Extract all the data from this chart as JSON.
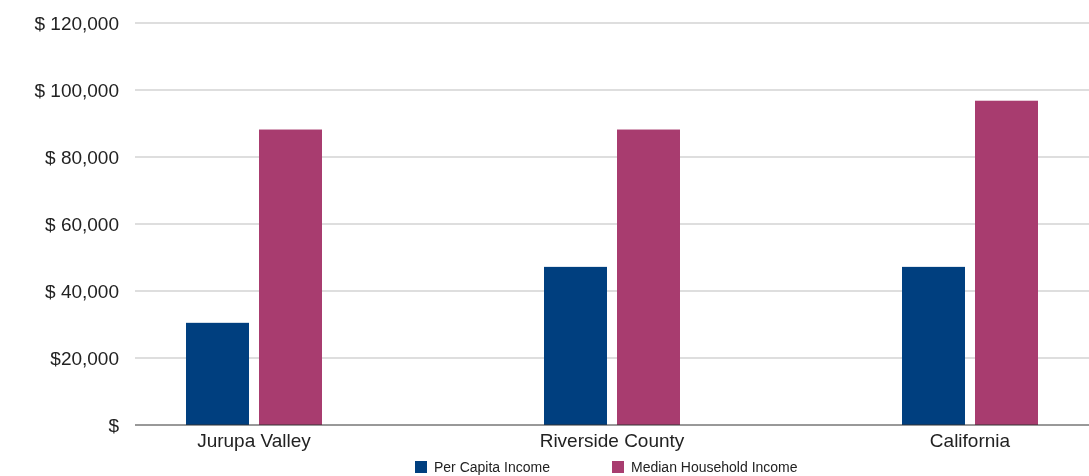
{
  "chart_data": {
    "type": "bar",
    "categories": [
      "Jurupa Valley",
      "Riverside County",
      "California"
    ],
    "series": [
      {
        "name": "Per Capita Income",
        "color": "#003f7f",
        "values": [
          30500,
          47200,
          47200
        ]
      },
      {
        "name": "Median Household Income",
        "color": "#a83c6f",
        "values": [
          88200,
          88200,
          96800
        ]
      }
    ],
    "ylim": [
      0,
      120000
    ],
    "yticks": [
      {
        "value": 0,
        "label": "$"
      },
      {
        "value": 20000,
        "label": "$20,000"
      },
      {
        "value": 40000,
        "label": "$ 40,000"
      },
      {
        "value": 60000,
        "label": "$ 60,000"
      },
      {
        "value": 80000,
        "label": "$ 80,000"
      },
      {
        "value": 100000,
        "label": "$ 100,000"
      },
      {
        "value": 120000,
        "label": "$ 120,000"
      }
    ],
    "grid": "y",
    "legend": "bottom"
  }
}
